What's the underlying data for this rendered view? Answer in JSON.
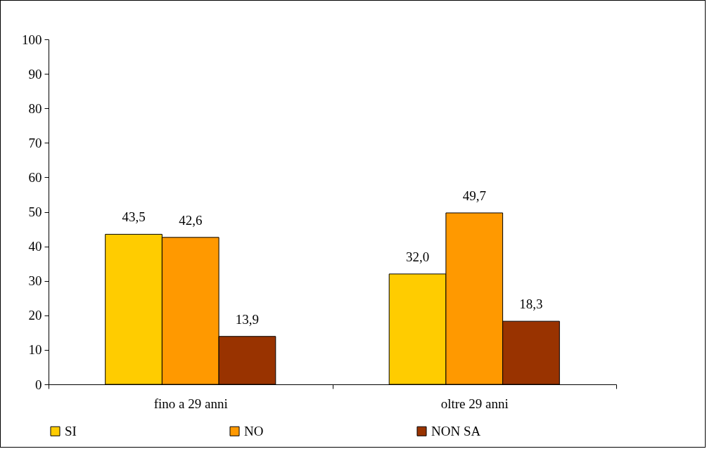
{
  "chart_data": {
    "type": "bar",
    "categories": [
      "fino a 29 anni",
      "oltre 29 anni"
    ],
    "series": [
      {
        "name": "SI",
        "color": "#ffcc00",
        "values": [
          43.5,
          32.0
        ],
        "value_labels": [
          "43,5",
          "32,0"
        ]
      },
      {
        "name": "NO",
        "color": "#ff9900",
        "values": [
          42.6,
          49.7
        ],
        "value_labels": [
          "42,6",
          "49,7"
        ]
      },
      {
        "name": "NON SA",
        "color": "#993300",
        "values": [
          13.9,
          18.3
        ],
        "value_labels": [
          "13,9",
          "18,3"
        ]
      }
    ],
    "ylim": [
      0,
      100
    ],
    "yticks": [
      0,
      10,
      20,
      30,
      40,
      50,
      60,
      70,
      80,
      90,
      100
    ],
    "legend": "bottom",
    "grid": false
  }
}
